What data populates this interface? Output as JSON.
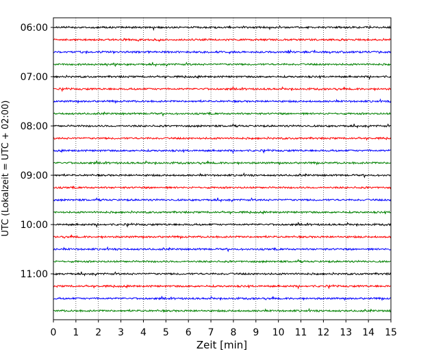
{
  "chart_data": {
    "type": "line",
    "subtype": "helicorder",
    "xlabel": "Zeit  [min]",
    "ylabel": "UTC (Lokalzeit = UTC + 02:00)",
    "xlim": [
      0,
      15
    ],
    "x_ticks": [
      0,
      1,
      2,
      3,
      4,
      5,
      6,
      7,
      8,
      9,
      10,
      11,
      12,
      13,
      14,
      15
    ],
    "grid": "vertical dotted",
    "trace_interval_minutes": 15,
    "start_time": "06:00",
    "end_time": "11:45",
    "y_tick_labels": [
      "06:00",
      "07:00",
      "08:00",
      "09:00",
      "10:00",
      "11:00"
    ],
    "trace_colors": [
      "#000000",
      "#ff0000",
      "#0000ff",
      "#008000"
    ],
    "trace_count": 24
  }
}
